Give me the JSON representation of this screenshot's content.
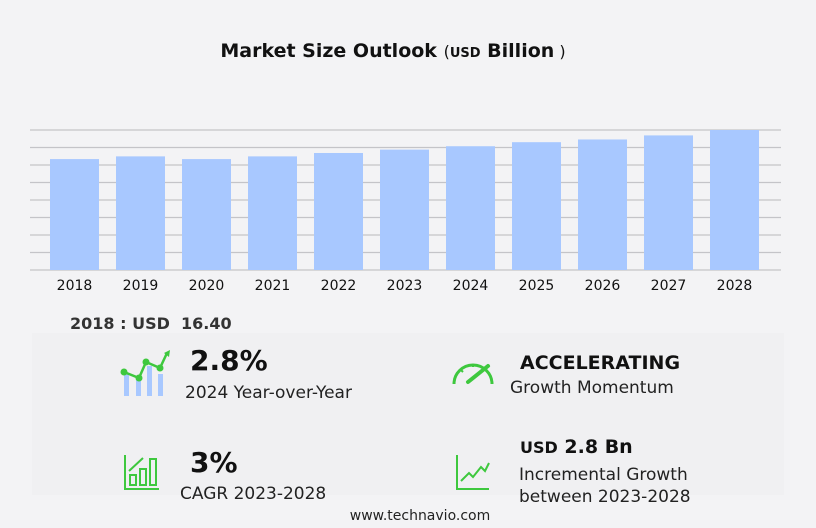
{
  "chart_data": {
    "type": "bar",
    "title": "Market Size Outlook",
    "title_unit": "USD",
    "title_unit_word": "Billion",
    "categories": [
      "2018",
      "2019",
      "2020",
      "2021",
      "2022",
      "2023",
      "2024",
      "2025",
      "2026",
      "2027",
      "2028"
    ],
    "values": [
      16.4,
      16.8,
      16.4,
      16.8,
      17.3,
      17.8,
      18.3,
      18.9,
      19.3,
      19.9,
      20.7
    ],
    "ylim": [
      0,
      20.7
    ],
    "grid": true,
    "bar_color": "#a8c8ff",
    "grid_color": "#c4c4c8"
  },
  "first_value": {
    "year": "2018",
    "currency": "USD",
    "value": "16.40"
  },
  "stats": {
    "yoy": {
      "value": "2.8%",
      "label": "2024 Year-over-Year",
      "icon": "growth-chart-icon"
    },
    "momentum": {
      "value": "ACCELERATING",
      "label": "Growth Momentum",
      "icon": "speedometer-icon"
    },
    "cagr": {
      "value": "3%",
      "label": "CAGR 2023-2028",
      "icon": "bar-growth-icon"
    },
    "incremental": {
      "currency": "USD",
      "value": "2.8 Bn",
      "label1": "Incremental Growth",
      "label2": "between 2023-2028",
      "icon": "trend-line-icon"
    }
  },
  "accent_color": "#3ec83e",
  "footer": "www.technavio.com"
}
